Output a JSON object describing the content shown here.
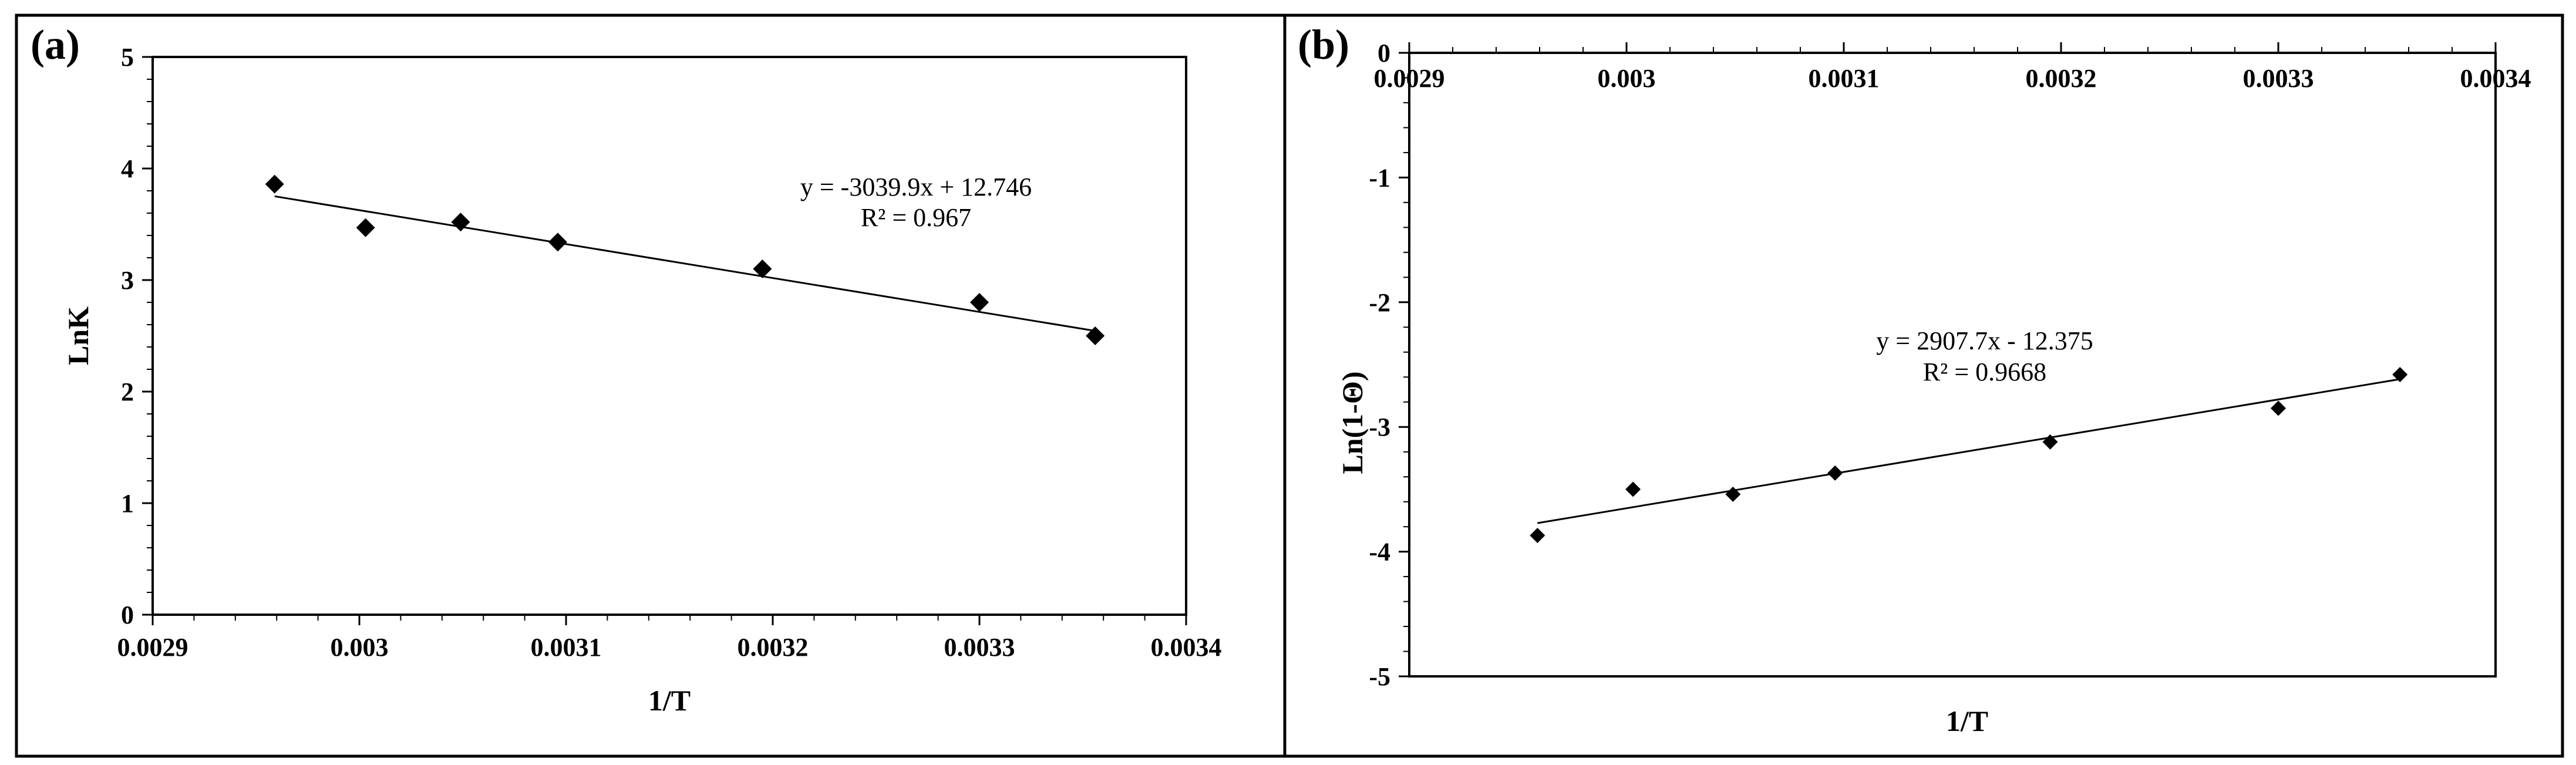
{
  "chart_data": [
    {
      "panel": "(a)",
      "type": "scatter",
      "xlabel": "1/T",
      "ylabel": "LnK",
      "xlim": [
        0.0029,
        0.0034
      ],
      "ylim": [
        0,
        5
      ],
      "x_ticks": [
        0.0029,
        0.003,
        0.0031,
        0.0032,
        0.0033,
        0.0034
      ],
      "x_tick_labels": [
        "0.0029",
        "0.003",
        "0.0031",
        "0.0032",
        "0.0033",
        "0.0034"
      ],
      "y_ticks": [
        0,
        1,
        2,
        3,
        4,
        5
      ],
      "y_tick_labels": [
        "0",
        "1",
        "2",
        "3",
        "4",
        "5"
      ],
      "points": [
        {
          "x": 0.002959,
          "y": 3.86
        },
        {
          "x": 0.003003,
          "y": 3.47
        },
        {
          "x": 0.003049,
          "y": 3.52
        },
        {
          "x": 0.003096,
          "y": 3.34
        },
        {
          "x": 0.003195,
          "y": 3.1
        },
        {
          "x": 0.0033,
          "y": 2.8
        },
        {
          "x": 0.003356,
          "y": 2.5
        }
      ],
      "trendline": {
        "slope": -3039.9,
        "intercept": 12.746,
        "x_start": 0.002959,
        "x_end": 0.003356
      },
      "equation": "y = -3039.9x + 12.746",
      "r2": "R² = 0.967",
      "x_axis_position": "bottom"
    },
    {
      "panel": "(b)",
      "type": "scatter",
      "xlabel": "1/T",
      "ylabel": "Ln(1-Θ)",
      "xlim": [
        0.0029,
        0.0034
      ],
      "ylim": [
        -5,
        0
      ],
      "x_ticks": [
        0.0029,
        0.003,
        0.0031,
        0.0032,
        0.0033,
        0.0034
      ],
      "x_tick_labels": [
        "0.0029",
        "0.003",
        "0.0031",
        "0.0032",
        "0.0033",
        "0.0034"
      ],
      "y_ticks": [
        0,
        -1,
        -2,
        -3,
        -4,
        -5
      ],
      "y_tick_labels": [
        "0",
        "-1",
        "-2",
        "-3",
        "-4",
        "-5"
      ],
      "points": [
        {
          "x": 0.002959,
          "y": -3.87
        },
        {
          "x": 0.003003,
          "y": -3.5
        },
        {
          "x": 0.003049,
          "y": -3.54
        },
        {
          "x": 0.003096,
          "y": -3.37
        },
        {
          "x": 0.003195,
          "y": -3.12
        },
        {
          "x": 0.0033,
          "y": -2.85
        },
        {
          "x": 0.003356,
          "y": -2.58
        }
      ],
      "trendline": {
        "slope": 2907.7,
        "intercept": -12.375,
        "x_start": 0.002959,
        "x_end": 0.003356
      },
      "equation": "y = 2907.7x - 12.375",
      "r2": "R² = 0.9668",
      "x_axis_position": "top"
    }
  ]
}
